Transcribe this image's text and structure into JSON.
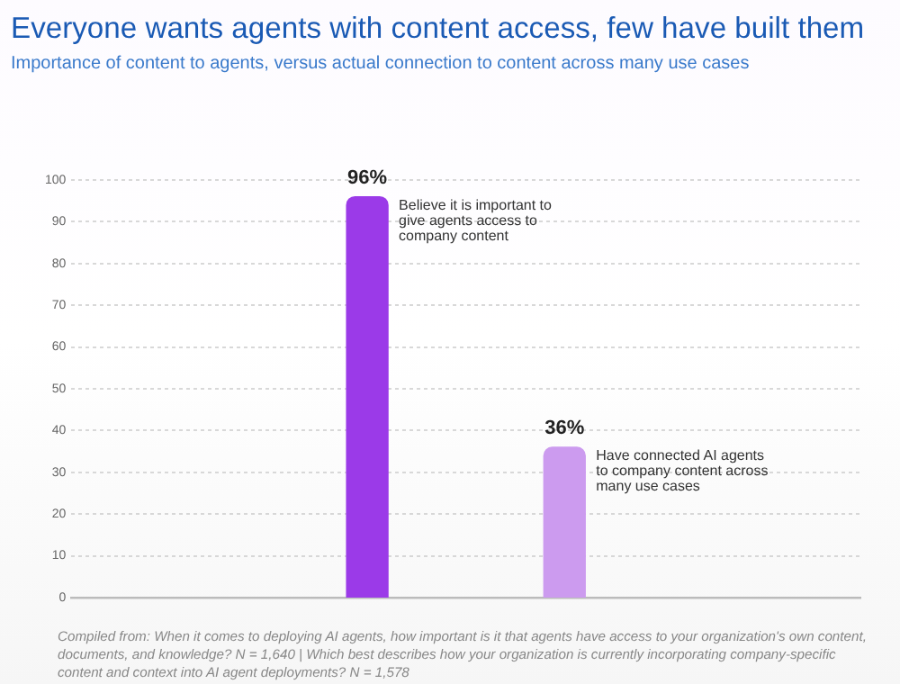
{
  "chart_data": {
    "type": "bar",
    "title": "Everyone wants agents with content access, few have built them",
    "subtitle": "Importance of content to agents, versus actual connection to content across many use cases",
    "categories": [
      null,
      null,
      null,
      null
    ],
    "values": [
      null,
      96,
      36,
      null
    ],
    "colors": [
      "#9b3ae8",
      "#9b3ae8",
      "#cc9bef",
      "#cc9bef"
    ],
    "value_labels": [
      null,
      "96%",
      "36%",
      null
    ],
    "ylim": [
      0,
      100
    ],
    "yticks": [
      0,
      10,
      20,
      30,
      40,
      50,
      60,
      70,
      80,
      90,
      100
    ],
    "grid": "y",
    "tick_labels": "y",
    "legend": false,
    "annotations": [
      "Believe it is important to give agents access to company content",
      "Have connected AI agents to company content across many use cases",
      "Compiled from: When it comes to deploying AI agents, how important is it that agents have access to your organization's own content, documents, and knowledge? N = 1,640 | Which best describes how your organization is currently incorporating company-specific content and context into AI agent deployments? N = 1,578"
    ]
  }
}
